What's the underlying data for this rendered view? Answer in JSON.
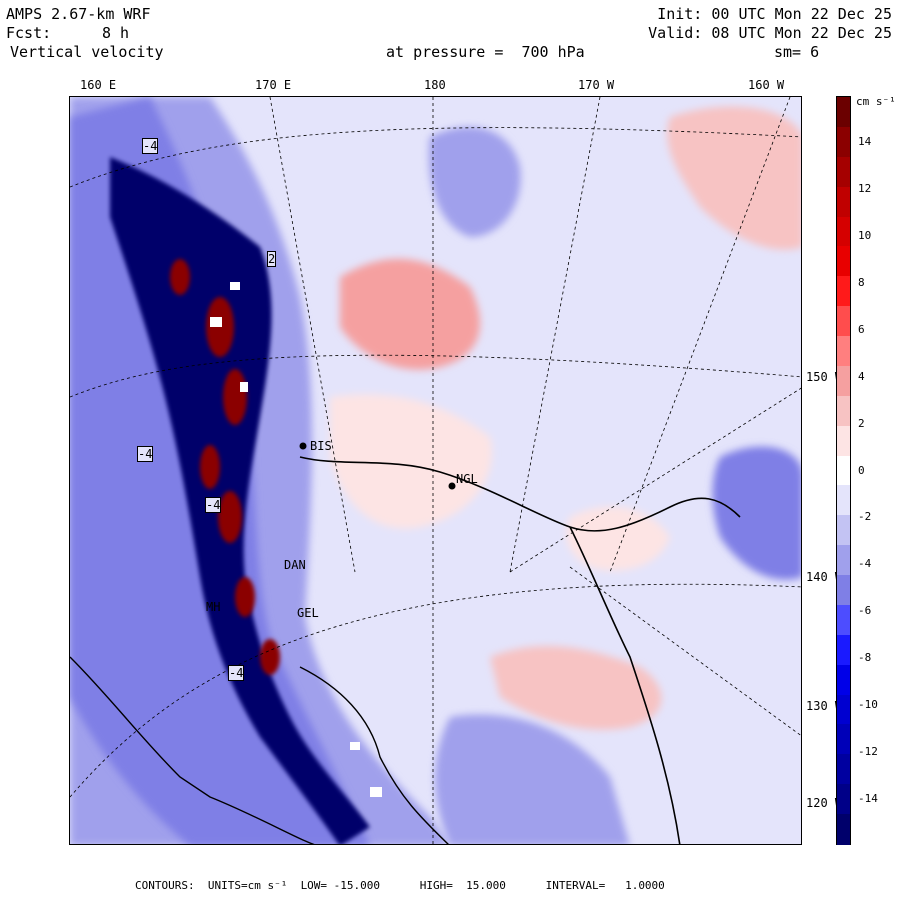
{
  "header": {
    "model": "AMPS 2.67-km WRF",
    "init": "Init: 00 UTC Mon 22 Dec 25",
    "fcst_label": "Fcst:",
    "fcst_value": "8 h",
    "valid": "Valid: 08 UTC Mon 22 Dec 25",
    "field": "Vertical velocity",
    "level": "at pressure =  700 hPa",
    "smoothing": "sm= 6"
  },
  "longitude_labels": [
    "160 E",
    "170 E",
    "180",
    "170 W",
    "160 W"
  ],
  "latitude_labels": [
    "150 W",
    "140 W",
    "130 W",
    "120 W"
  ],
  "stations": [
    {
      "name": "BIS"
    },
    {
      "name": "NGL"
    },
    {
      "name": "DAN"
    },
    {
      "name": "GEL"
    },
    {
      "name": "MH"
    }
  ],
  "contour_labels": [
    "-4",
    "2",
    "-4",
    "-4",
    "-4"
  ],
  "colorbar": {
    "units": "cm s⁻¹",
    "ticks": [
      "14",
      "12",
      "10",
      "8",
      "6",
      "4",
      "2",
      "0",
      "-2",
      "-4",
      "-6",
      "-8",
      "-10",
      "-12",
      "-14"
    ],
    "colors": [
      "#6b0000",
      "#8b0000",
      "#a50000",
      "#c00000",
      "#d50000",
      "#e80000",
      "#ff1a1a",
      "#ff4d4d",
      "#ff7f7f",
      "#f5a0a0",
      "#f7c3c3",
      "#fde4e4",
      "#ffffff",
      "#e4e4fb",
      "#c3c3f3",
      "#a0a0ec",
      "#7f7fe6",
      "#4d4dff",
      "#1a1aff",
      "#0000e8",
      "#0000d0",
      "#0000b8",
      "#0000a0",
      "#000088",
      "#00006b"
    ]
  },
  "footer": {
    "text": "CONTOURS:  UNITS=cm s⁻¹  LOW= -15.000      HIGH=  15.000      INTERVAL=   1.0000"
  }
}
